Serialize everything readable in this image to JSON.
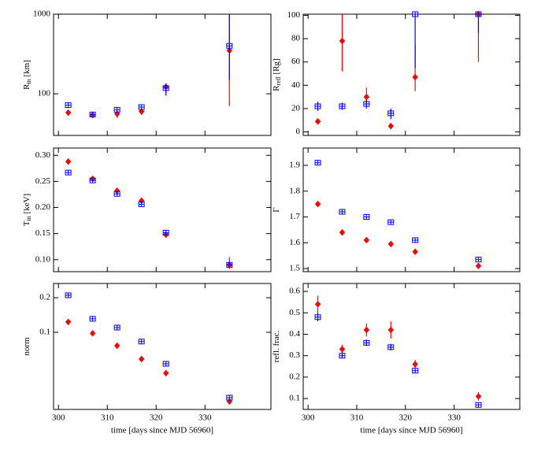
{
  "chart_data": [
    {
      "type": "scatter",
      "yscale": "log",
      "ylabel": "R",
      "ylabel_sub": "in",
      "ylabel_rest": " [km]",
      "x": [
        302,
        307,
        312,
        317,
        322,
        335
      ],
      "xlim": [
        299,
        343.5
      ],
      "xticks": [
        300,
        310,
        320,
        330
      ],
      "ylim": [
        30,
        1000
      ],
      "yticks": [
        100,
        1000
      ],
      "series": [
        {
          "color": "#ff0000",
          "marker": "diamond",
          "values": [
            58,
            54,
            56,
            60,
            122,
            350
          ],
          "lower": [
            null,
            null,
            50,
            54,
            105,
            70
          ],
          "upper": [
            null,
            null,
            62,
            66,
            135,
            1000
          ]
        },
        {
          "color": "#0000ff",
          "marker": "square",
          "values": [
            72,
            55,
            63,
            68,
            118,
            400
          ],
          "lower": [
            null,
            null,
            null,
            null,
            95,
            150
          ],
          "upper": [
            null,
            null,
            null,
            null,
            135,
            1000
          ]
        }
      ]
    },
    {
      "type": "scatter",
      "ylabel": "R",
      "ylabel_sub": "refl",
      "ylabel_rest": " [Rg]",
      "x": [
        302,
        307,
        312,
        317,
        322,
        335
      ],
      "xlim": [
        299,
        343.5
      ],
      "xticks": [
        300,
        310,
        320,
        330
      ],
      "ylim": [
        -3,
        101
      ],
      "yticks": [
        0,
        20,
        40,
        60,
        80,
        100
      ],
      "series": [
        {
          "color": "#ff0000",
          "marker": "diamond",
          "values": [
            9,
            78,
            30,
            5,
            47,
            101
          ],
          "lower": [
            null,
            52,
            24,
            null,
            35,
            60
          ],
          "upper": [
            null,
            101,
            38,
            null,
            75,
            101
          ]
        },
        {
          "color": "#0000ff",
          "marker": "square",
          "values": [
            22,
            22,
            24,
            16,
            101,
            101
          ],
          "lower": [
            18,
            19,
            20,
            11,
            55,
            85
          ],
          "upper": [
            26,
            25,
            28,
            20,
            101,
            101
          ]
        }
      ]
    },
    {
      "type": "scatter",
      "ylabel": "T",
      "ylabel_sub": "in",
      "ylabel_rest": " [keV]",
      "x": [
        302,
        307,
        312,
        317,
        322,
        335
      ],
      "xlim": [
        299,
        343.5
      ],
      "xticks": [
        300,
        310,
        320,
        330
      ],
      "ylim": [
        0.077,
        0.314
      ],
      "yticks": [
        {
          "value": 0.1,
          "label": "0.10"
        },
        {
          "value": 0.15,
          "label": "0.15"
        },
        {
          "value": 0.2,
          "label": "0.20"
        },
        {
          "value": 0.25,
          "label": "0.25"
        },
        {
          "value": 0.3,
          "label": "0.30"
        }
      ],
      "series": [
        {
          "color": "#ff0000",
          "marker": "diamond",
          "values": [
            0.288,
            0.255,
            0.232,
            0.213,
            0.148,
            0.09
          ],
          "lower": [
            null,
            null,
            null,
            null,
            null,
            0.082
          ],
          "upper": [
            null,
            null,
            null,
            null,
            null,
            0.105
          ]
        },
        {
          "color": "#0000ff",
          "marker": "square",
          "values": [
            0.267,
            0.252,
            0.226,
            0.206,
            0.152,
            0.09
          ],
          "lower": [
            null,
            null,
            null,
            null,
            null,
            0.084
          ],
          "upper": [
            null,
            null,
            null,
            null,
            null,
            0.096
          ]
        }
      ]
    },
    {
      "type": "scatter",
      "ylabel": "Γ",
      "x": [
        302,
        307,
        312,
        317,
        322,
        335
      ],
      "xlim": [
        299,
        343.5
      ],
      "xticks": [
        300,
        310,
        320,
        330
      ],
      "ylim": [
        1.488,
        1.967
      ],
      "yticks": [
        1.5,
        1.6,
        1.7,
        1.8,
        1.9
      ],
      "series": [
        {
          "color": "#ff0000",
          "marker": "diamond",
          "values": [
            1.75,
            1.64,
            1.61,
            1.595,
            1.565,
            1.51
          ]
        },
        {
          "color": "#0000ff",
          "marker": "square",
          "values": [
            1.91,
            1.72,
            1.7,
            1.68,
            1.61,
            1.535
          ]
        }
      ]
    },
    {
      "type": "scatter",
      "yscale": "log",
      "ylabel": "norm",
      "xlabel": "time [days since MJD 56960]",
      "x": [
        302,
        307,
        312,
        317,
        322,
        335
      ],
      "xlim": [
        299,
        343.5
      ],
      "xticks": [
        300,
        310,
        320,
        330
      ],
      "ylim": [
        0.0213,
        0.266
      ],
      "yticks": [
        0.1,
        0.2
      ],
      "series": [
        {
          "color": "#ff0000",
          "marker": "diamond",
          "values": [
            0.123,
            0.098,
            0.0765,
            0.0585,
            0.0441,
            0.025
          ]
        },
        {
          "color": "#0000ff",
          "marker": "square",
          "values": [
            0.21,
            0.131,
            0.11,
            0.083,
            0.0532,
            0.027
          ]
        }
      ]
    },
    {
      "type": "scatter",
      "ylabel": "refl. frac.",
      "xlabel": "time [days since MJD 56960]",
      "x": [
        302,
        307,
        312,
        317,
        322,
        335
      ],
      "xlim": [
        299,
        343.5
      ],
      "xticks": [
        300,
        310,
        320,
        330
      ],
      "ylim": [
        0.049,
        0.637
      ],
      "yticks": [
        0.1,
        0.2,
        0.3,
        0.4,
        0.5,
        0.6
      ],
      "series": [
        {
          "color": "#ff0000",
          "marker": "diamond",
          "values": [
            0.54,
            0.33,
            0.42,
            0.42,
            0.26,
            0.11
          ],
          "lower": [
            0.5,
            0.31,
            0.39,
            0.38,
            0.24,
            0.09
          ],
          "upper": [
            0.58,
            0.35,
            0.45,
            0.46,
            0.28,
            0.13
          ]
        },
        {
          "color": "#0000ff",
          "marker": "square",
          "values": [
            0.48,
            0.3,
            0.36,
            0.34,
            0.23,
            0.07
          ],
          "lower": [
            0.46,
            0.29,
            0.345,
            0.325,
            0.225,
            null
          ],
          "upper": [
            0.5,
            0.31,
            0.375,
            0.355,
            0.235,
            null
          ]
        }
      ]
    }
  ]
}
